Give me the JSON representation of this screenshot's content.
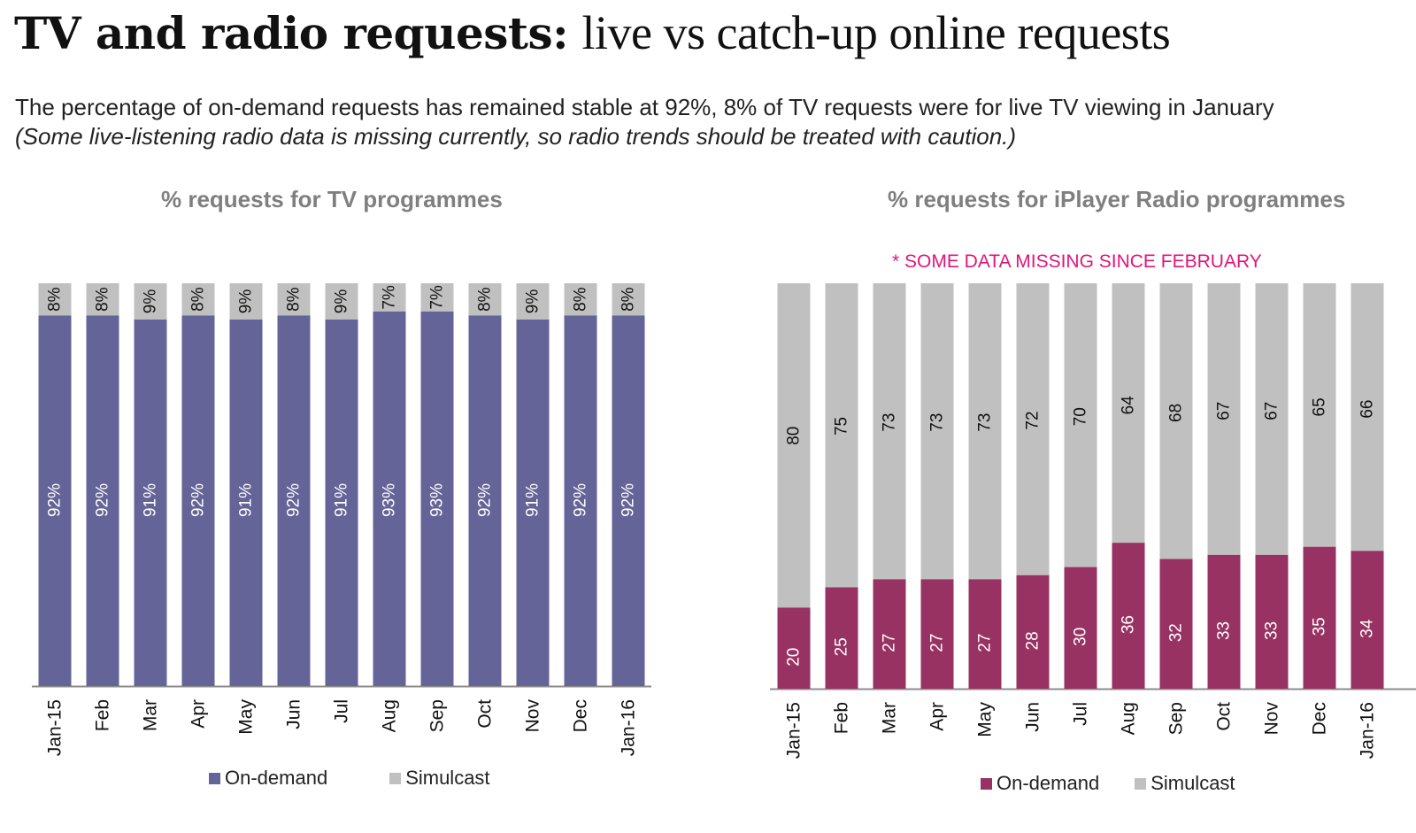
{
  "header": {
    "title_bold": "TV and radio requests:",
    "title_rest": "live vs catch-up online requests",
    "subtitle": "The percentage of on-demand requests has remained stable at 92%,  8% of TV requests were for live TV viewing in January",
    "note": "(Some live-listening radio data is missing currently, so radio trends should be treated with caution.)"
  },
  "colors": {
    "tv_on_demand": "#656498",
    "radio_on_demand": "#983263",
    "simulcast": "#c0c0c0",
    "missing_note": "#e0157a"
  },
  "chart_data": [
    {
      "type": "bar",
      "stacked": true,
      "title": "% requests for TV programmes",
      "categories": [
        "Jan-15",
        "Feb",
        "Mar",
        "Apr",
        "May",
        "Jun",
        "Jul",
        "Aug",
        "Sep",
        "Oct",
        "Nov",
        "Dec",
        "Jan-16"
      ],
      "series": [
        {
          "name": "On-demand",
          "values": [
            92,
            92,
            91,
            92,
            91,
            92,
            91,
            93,
            93,
            92,
            91,
            92,
            92
          ],
          "labels": [
            "92%",
            "92%",
            "91%",
            "92%",
            "91%",
            "92%",
            "91%",
            "93%",
            "93%",
            "92%",
            "91%",
            "92%",
            "92%"
          ]
        },
        {
          "name": "Simulcast",
          "values": [
            8,
            8,
            9,
            8,
            9,
            8,
            9,
            7,
            7,
            8,
            9,
            8,
            8
          ],
          "labels": [
            "8%",
            "8%",
            "9%",
            "8%",
            "9%",
            "8%",
            "9%",
            "7%",
            "7%",
            "8%",
            "9%",
            "8%",
            "8%"
          ]
        }
      ],
      "ylim": [
        0,
        100
      ],
      "xlabel": "",
      "ylabel": "",
      "grid": false,
      "legend": "bottom"
    },
    {
      "type": "bar",
      "stacked": true,
      "title": "% requests for iPlayer Radio programmes",
      "annotation": "* SOME DATA MISSING SINCE FEBRUARY",
      "categories": [
        "Jan-15",
        "Feb",
        "Mar",
        "Apr",
        "May",
        "Jun",
        "Jul",
        "Aug",
        "Sep",
        "Oct",
        "Nov",
        "Dec",
        "Jan-16"
      ],
      "series": [
        {
          "name": "On-demand",
          "values": [
            20,
            25,
            27,
            27,
            27,
            28,
            30,
            36,
            32,
            33,
            33,
            35,
            34
          ],
          "labels": [
            "20",
            "25",
            "27",
            "27",
            "27",
            "28",
            "30",
            "36",
            "32",
            "33",
            "33",
            "35",
            "34"
          ]
        },
        {
          "name": "Simulcast",
          "values": [
            80,
            75,
            73,
            73,
            73,
            72,
            70,
            64,
            68,
            67,
            67,
            65,
            66
          ],
          "labels": [
            "80",
            "75",
            "73",
            "73",
            "73",
            "72",
            "70",
            "64",
            "68",
            "67",
            "67",
            "65",
            "66"
          ]
        }
      ],
      "ylim": [
        0,
        100
      ],
      "xlabel": "",
      "ylabel": "",
      "grid": false,
      "legend": "bottom"
    }
  ]
}
